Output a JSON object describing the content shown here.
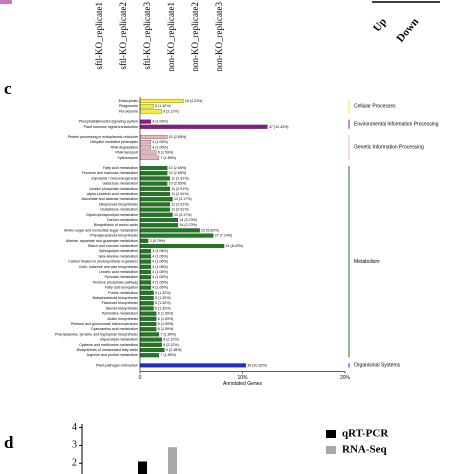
{
  "top_fragment": {
    "samples": [
      "sftl-KO_replicate1",
      "sftl-KO_replicate2",
      "sftl-KO_replicate3",
      "non-KO_replicate1",
      "non-KO_replicate2",
      "non-KO_replicate3"
    ],
    "directions": [
      "Up",
      "Down"
    ]
  },
  "panel_labels": [
    "c",
    "d"
  ],
  "chart_data": [
    {
      "type": "hbar_grouped",
      "xlabel": "Annotated Genes",
      "xlim": [
        0,
        20
      ],
      "xticks": [
        0,
        {
          "value": 10,
          "label": "10%"
        },
        {
          "value": 20,
          "label": "20%"
        }
      ],
      "groups": [
        {
          "name": "Cellular Processes",
          "color": "#f5f032",
          "categories": [
            "Endocytosis",
            "Phagosome",
            "Peroxisome"
          ],
          "values": [
            4.23,
            1.32,
            2.12
          ],
          "value_labels": [
            "16 (4.23%)",
            "5 (1.32%)",
            "8 (2.12%)"
          ]
        },
        {
          "name": "Environmental Information Processing",
          "color": "#8b1a8b",
          "categories": [
            "Phosphatidylinositol signaling system",
            "Plant hormone signal transduction"
          ],
          "values": [
            1.06,
            12.43
          ],
          "value_labels": [
            "4 (1.06%)",
            "47 (12.43%)"
          ]
        },
        {
          "name": "Genetic Information Processing",
          "color": "#e8b4bc",
          "categories": [
            "Protein processing in endoplasmic reticulum",
            "Ubiquitin mediated proteolysis",
            "RNA degradation",
            "RNA transport",
            "Spliceosome"
          ],
          "values": [
            2.65,
            1.06,
            1.06,
            1.59,
            1.85
          ],
          "value_labels": [
            "10 (2.65%)",
            "4 (1.06%)",
            "4 (1.06%)",
            "6 (1.59%)",
            "7 (1.85%)"
          ]
        },
        {
          "name": "Metabolism",
          "color": "#1e7a1e",
          "categories": [
            "Fatty acid metabolism",
            "Fructose and mannose metabolism",
            "Glycolysis / Gluconeogenesis",
            "Galactose metabolism",
            "Inositol phosphate metabolism",
            "alpha-Linolenic acid metabolism",
            "Ascorbate and aldarate metabolism",
            "Diterpenoid biosynthesis",
            "Glutathione metabolism",
            "Glycerophospholipid metabolism",
            "Carbon metabolism",
            "Biosynthesis of amino acids",
            "Amino sugar and nucleotide sugar metabolism",
            "Phenylpropanoid biosynthesis",
            "Alanine, aspartate and glutamate metabolism",
            "Starch and sucrose metabolism",
            "Sphingolipid metabolism",
            "beta-Alanine metabolism",
            "Carbon fixation in photosynthetic organisms",
            "Cutin, suberine and wax biosynthesis",
            "Linoleic acid metabolism",
            "Pyruvate metabolism",
            "Pentose phosphate pathway",
            "Fatty acid elongation",
            "Purine metabolism",
            "Brassinosteroid biosynthesis",
            "Flavonoid biosynthesis",
            "Steroid biosynthesis",
            "Pyrimidine metabolism",
            "Zeatin biosynthesis",
            "Pentose and glucuronate interconversions",
            "Cyanoamino acid metabolism",
            "Phenylalanine, tyrosine and tryptophan biosynthesis",
            "Glycerolipid metabolism",
            "Cysteine and methionine metabolism",
            "Biosynthesis of unsaturated fatty acids",
            "Arginine and proline metabolism"
          ],
          "values": [
            2.65,
            2.65,
            2.91,
            2.65,
            2.91,
            2.91,
            3.17,
            2.91,
            2.91,
            3.17,
            3.7,
            3.7,
            5.82,
            7.14,
            0.79,
            8.2,
            1.06,
            1.06,
            1.06,
            1.06,
            1.06,
            1.06,
            1.06,
            1.06,
            1.32,
            1.32,
            1.32,
            1.32,
            1.59,
            1.59,
            1.59,
            1.59,
            1.85,
            2.12,
            2.12,
            2.38,
            1.85
          ],
          "value_labels": [
            "10 (2.65%)",
            "10 (2.65%)",
            "11 (2.91%)",
            "10 (2.65%)",
            "11 (2.91%)",
            "11 (2.91%)",
            "12 (3.17%)",
            "11 (2.91%)",
            "11 (2.91%)",
            "12 (3.17%)",
            "14 (3.70%)",
            "14 (3.70%)",
            "22 (5.82%)",
            "27 (7.14%)",
            "3 (0.79%)",
            "31 (8.20%)",
            "4 (1.06%)",
            "4 (1.06%)",
            "4 (1.06%)",
            "4 (1.06%)",
            "4 (1.06%)",
            "4 (1.06%)",
            "4 (1.06%)",
            "4 (1.06%)",
            "5 (1.32%)",
            "5 (1.32%)",
            "5 (1.32%)",
            "5 (1.32%)",
            "6 (1.59%)",
            "6 (1.59%)",
            "6 (1.59%)",
            "6 (1.59%)",
            "7 (1.85%)",
            "8 (2.12%)",
            "8 (2.12%)",
            "9 (2.38%)",
            "7 (1.85%)"
          ]
        },
        {
          "name": "Organismal Systems",
          "color": "#1f2fbf",
          "categories": [
            "Plant-pathogen interaction"
          ],
          "values": [
            10.32
          ],
          "value_labels": [
            "39 (10.32%)"
          ]
        }
      ]
    },
    {
      "type": "bar",
      "ylim": [
        1.4,
        4.2
      ],
      "yticks": [
        2,
        3,
        4
      ],
      "categories": [
        null
      ],
      "series": [
        {
          "name": "qRT-PCR",
          "color": "#000000",
          "values": [
            2.1
          ]
        },
        {
          "name": "RNA-Seq",
          "color": "#a8a8a8",
          "values": [
            2.9
          ]
        }
      ]
    }
  ]
}
